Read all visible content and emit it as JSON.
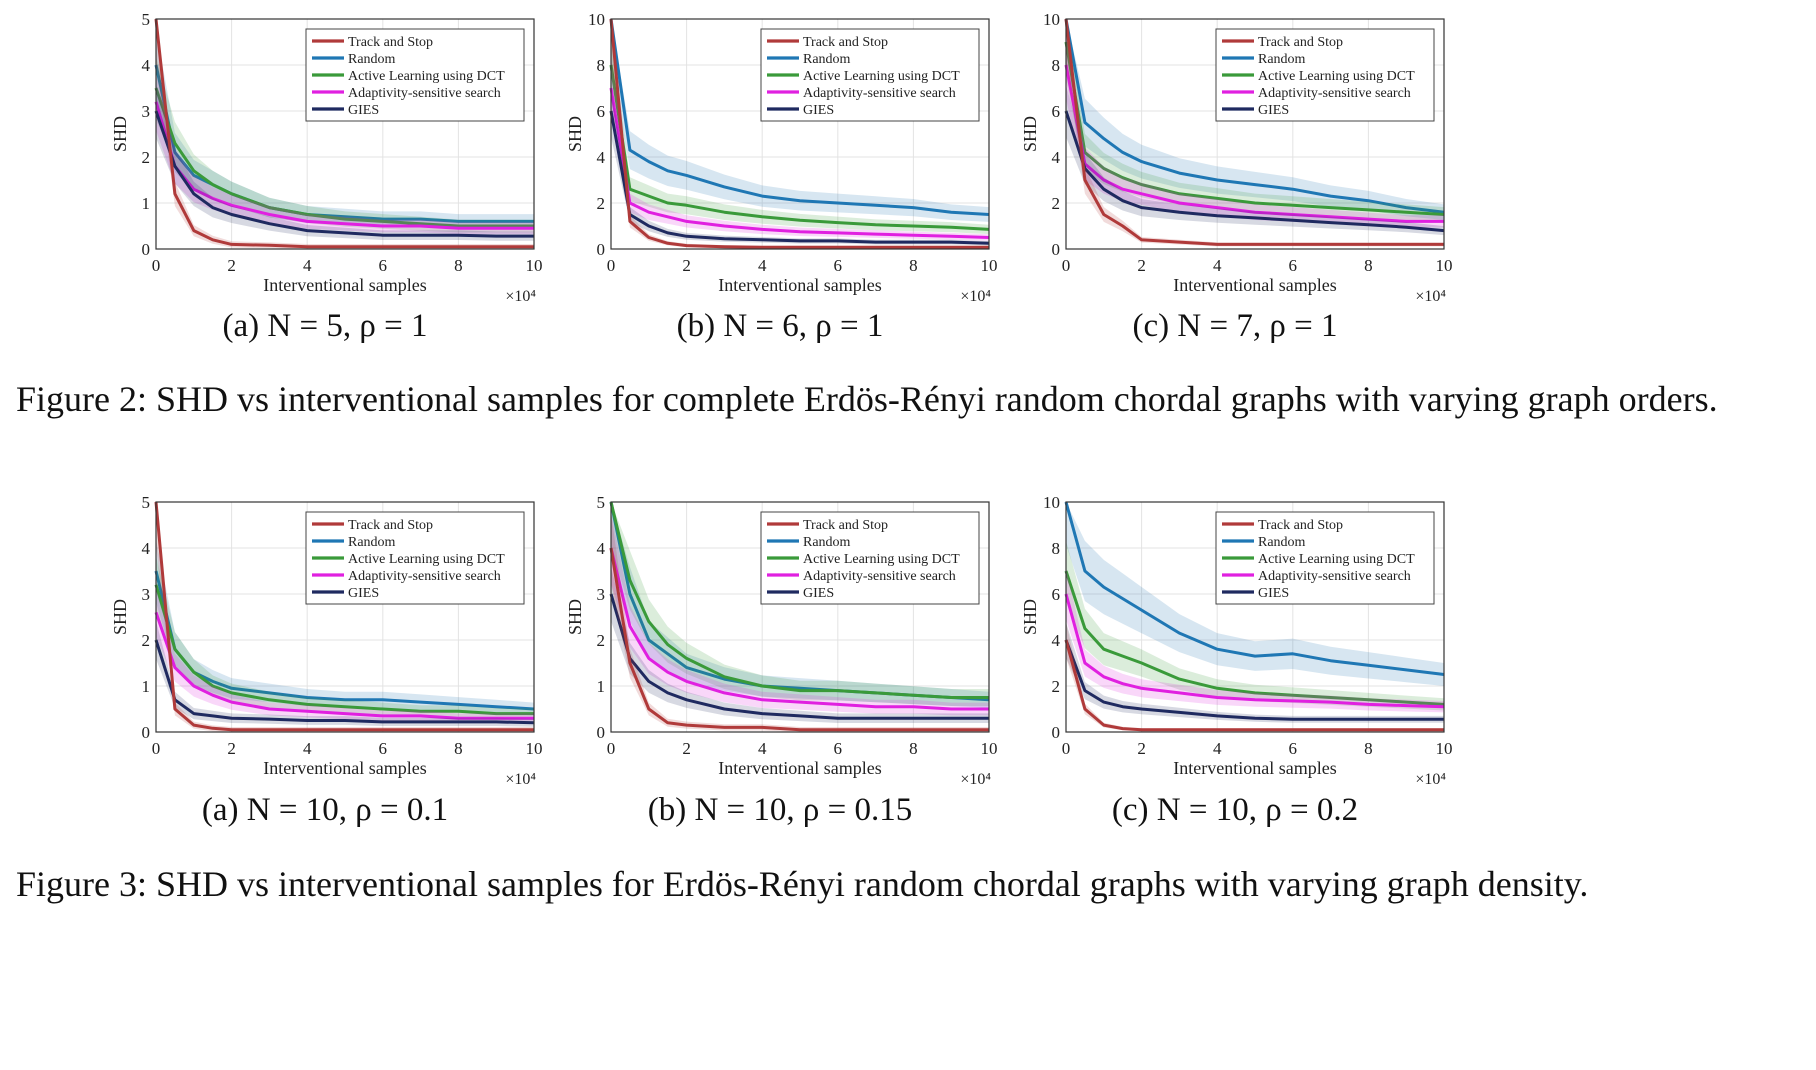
{
  "colors": {
    "track_and_stop": "#b03a3a",
    "random": "#1f77b4",
    "active_learning_dct": "#3a9a3a",
    "adaptivity_sensitive": "#e020e0",
    "gies": "#1f2a60"
  },
  "figure2": {
    "caption": "Figure 2: SHD vs interventional samples for complete Erdös-Rényi random chordal graphs with varying graph orders.",
    "subcaptions": [
      "(a) N = 5, ρ = 1",
      "(b) N = 6, ρ = 1",
      "(c) N = 7, ρ = 1"
    ]
  },
  "figure3": {
    "caption": "Figure 3: SHD vs interventional samples for Erdös-Rényi random chordal graphs with varying graph density.",
    "subcaptions": [
      "(a) N = 10, ρ = 0.1",
      "(b) N = 10, ρ = 0.15",
      "(c) N = 10, ρ = 0.2"
    ]
  },
  "chart_data": [
    {
      "type": "line",
      "ylabel": "SHD",
      "xlabel": "Interventional samples",
      "x_multiplier": "×10⁴",
      "xlim": [
        0,
        10
      ],
      "ylim": [
        0,
        5
      ],
      "xticks": [
        "0",
        "2",
        "4",
        "6",
        "8",
        "10"
      ],
      "yticks": [
        "0",
        "1",
        "2",
        "3",
        "4",
        "5"
      ],
      "grid": true,
      "legend_position": "top-right",
      "x": [
        0,
        0.5,
        1,
        1.5,
        2,
        3,
        4,
        5,
        6,
        7,
        8,
        9,
        10
      ],
      "series": [
        {
          "name": "Track and Stop",
          "values": [
            5,
            1.2,
            0.4,
            0.2,
            0.1,
            0.08,
            0.05,
            0.05,
            0.05,
            0.05,
            0.05,
            0.05,
            0.05
          ]
        },
        {
          "name": "Random",
          "values": [
            4,
            2.1,
            1.6,
            1.4,
            1.2,
            0.9,
            0.75,
            0.7,
            0.65,
            0.65,
            0.6,
            0.6,
            0.6
          ]
        },
        {
          "name": "Active Learning using DCT",
          "values": [
            3.5,
            2.3,
            1.7,
            1.4,
            1.2,
            0.9,
            0.75,
            0.65,
            0.6,
            0.55,
            0.5,
            0.5,
            0.5
          ]
        },
        {
          "name": "Adaptivity-sensitive search",
          "values": [
            3.2,
            1.8,
            1.3,
            1.1,
            0.95,
            0.75,
            0.6,
            0.55,
            0.5,
            0.5,
            0.45,
            0.45,
            0.45
          ]
        },
        {
          "name": "GIES",
          "values": [
            3,
            1.8,
            1.2,
            0.9,
            0.75,
            0.55,
            0.4,
            0.35,
            0.3,
            0.3,
            0.3,
            0.28,
            0.28
          ]
        }
      ]
    },
    {
      "type": "line",
      "ylabel": "SHD",
      "xlabel": "Interventional samples",
      "x_multiplier": "×10⁴",
      "xlim": [
        0,
        10
      ],
      "ylim": [
        0,
        10
      ],
      "xticks": [
        "0",
        "2",
        "4",
        "6",
        "8",
        "10"
      ],
      "yticks": [
        "0",
        "2",
        "4",
        "6",
        "8",
        "10"
      ],
      "grid": true,
      "legend_position": "top-right",
      "x": [
        0,
        0.5,
        1,
        1.5,
        2,
        3,
        4,
        5,
        6,
        7,
        8,
        9,
        10
      ],
      "series": [
        {
          "name": "Track and Stop",
          "values": [
            10,
            1.2,
            0.5,
            0.25,
            0.15,
            0.1,
            0.08,
            0.08,
            0.08,
            0.08,
            0.08,
            0.08,
            0.08
          ]
        },
        {
          "name": "Random",
          "values": [
            10,
            4.3,
            3.8,
            3.4,
            3.2,
            2.7,
            2.3,
            2.1,
            2.0,
            1.9,
            1.8,
            1.6,
            1.5
          ]
        },
        {
          "name": "Active Learning using DCT",
          "values": [
            8,
            2.6,
            2.3,
            2.0,
            1.9,
            1.6,
            1.4,
            1.25,
            1.15,
            1.05,
            1.0,
            0.95,
            0.85
          ]
        },
        {
          "name": "Adaptivity-sensitive search",
          "values": [
            7,
            2.0,
            1.6,
            1.4,
            1.2,
            1.0,
            0.85,
            0.75,
            0.7,
            0.65,
            0.6,
            0.55,
            0.5
          ]
        },
        {
          "name": "GIES",
          "values": [
            6,
            1.5,
            1.0,
            0.7,
            0.55,
            0.45,
            0.4,
            0.35,
            0.35,
            0.3,
            0.3,
            0.3,
            0.25
          ]
        }
      ]
    },
    {
      "type": "line",
      "ylabel": "SHD",
      "xlabel": "Interventional samples",
      "x_multiplier": "×10⁴",
      "xlim": [
        0,
        10
      ],
      "ylim": [
        0,
        10
      ],
      "xticks": [
        "0",
        "2",
        "4",
        "6",
        "8",
        "10"
      ],
      "yticks": [
        "0",
        "2",
        "4",
        "6",
        "8",
        "10"
      ],
      "grid": true,
      "legend_position": "top-right",
      "x": [
        0,
        0.5,
        1,
        1.5,
        2,
        3,
        4,
        5,
        6,
        7,
        8,
        9,
        10
      ],
      "series": [
        {
          "name": "Track and Stop",
          "values": [
            10,
            3.0,
            1.5,
            1.0,
            0.4,
            0.3,
            0.2,
            0.2,
            0.2,
            0.2,
            0.2,
            0.2,
            0.2
          ]
        },
        {
          "name": "Random",
          "values": [
            10,
            5.5,
            4.8,
            4.2,
            3.8,
            3.3,
            3.0,
            2.8,
            2.6,
            2.3,
            2.1,
            1.8,
            1.6
          ]
        },
        {
          "name": "Active Learning using DCT",
          "values": [
            9,
            4.2,
            3.5,
            3.1,
            2.8,
            2.4,
            2.2,
            2.0,
            1.9,
            1.8,
            1.7,
            1.6,
            1.5
          ]
        },
        {
          "name": "Adaptivity-sensitive search",
          "values": [
            8,
            3.7,
            3.0,
            2.6,
            2.4,
            2.0,
            1.8,
            1.6,
            1.5,
            1.4,
            1.3,
            1.2,
            1.2
          ]
        },
        {
          "name": "GIES",
          "values": [
            6,
            3.5,
            2.6,
            2.1,
            1.8,
            1.6,
            1.45,
            1.35,
            1.25,
            1.15,
            1.05,
            0.95,
            0.8
          ]
        }
      ]
    },
    {
      "type": "line",
      "ylabel": "SHD",
      "xlabel": "Interventional samples",
      "x_multiplier": "×10⁴",
      "xlim": [
        0,
        10
      ],
      "ylim": [
        0,
        5
      ],
      "xticks": [
        "0",
        "2",
        "4",
        "6",
        "8",
        "10"
      ],
      "yticks": [
        "0",
        "1",
        "2",
        "3",
        "4",
        "5"
      ],
      "grid": true,
      "legend_position": "top-right",
      "x": [
        0,
        0.5,
        1,
        1.5,
        2,
        3,
        4,
        5,
        6,
        7,
        8,
        9,
        10
      ],
      "series": [
        {
          "name": "Track and Stop",
          "values": [
            5,
            0.5,
            0.15,
            0.08,
            0.05,
            0.05,
            0.05,
            0.05,
            0.05,
            0.05,
            0.05,
            0.05,
            0.05
          ]
        },
        {
          "name": "Random",
          "values": [
            3.5,
            1.8,
            1.3,
            1.1,
            0.95,
            0.85,
            0.75,
            0.7,
            0.7,
            0.65,
            0.6,
            0.55,
            0.5
          ]
        },
        {
          "name": "Active Learning using DCT",
          "values": [
            3.2,
            1.8,
            1.3,
            1.0,
            0.85,
            0.7,
            0.6,
            0.55,
            0.5,
            0.45,
            0.45,
            0.4,
            0.4
          ]
        },
        {
          "name": "Adaptivity-sensitive search",
          "values": [
            2.6,
            1.4,
            1.0,
            0.8,
            0.65,
            0.5,
            0.45,
            0.4,
            0.35,
            0.35,
            0.3,
            0.3,
            0.3
          ]
        },
        {
          "name": "GIES",
          "values": [
            2,
            0.7,
            0.4,
            0.35,
            0.3,
            0.28,
            0.25,
            0.25,
            0.22,
            0.22,
            0.22,
            0.22,
            0.2
          ]
        }
      ]
    },
    {
      "type": "line",
      "ylabel": "SHD",
      "xlabel": "Interventional samples",
      "x_multiplier": "×10⁴",
      "xlim": [
        0,
        10
      ],
      "ylim": [
        0,
        5
      ],
      "xticks": [
        "0",
        "2",
        "4",
        "6",
        "8",
        "10"
      ],
      "yticks": [
        "0",
        "1",
        "2",
        "3",
        "4",
        "5"
      ],
      "grid": true,
      "legend_position": "top-right",
      "x": [
        0,
        0.5,
        1,
        1.5,
        2,
        3,
        4,
        5,
        6,
        7,
        8,
        9,
        10
      ],
      "series": [
        {
          "name": "Track and Stop",
          "values": [
            4,
            1.5,
            0.5,
            0.2,
            0.15,
            0.1,
            0.1,
            0.05,
            0.05,
            0.05,
            0.05,
            0.05,
            0.05
          ]
        },
        {
          "name": "Random",
          "values": [
            5,
            3.0,
            2.0,
            1.7,
            1.4,
            1.15,
            1.0,
            0.95,
            0.9,
            0.85,
            0.8,
            0.75,
            0.7
          ]
        },
        {
          "name": "Active Learning using DCT",
          "values": [
            5,
            3.3,
            2.4,
            1.9,
            1.6,
            1.2,
            1.0,
            0.9,
            0.9,
            0.85,
            0.8,
            0.75,
            0.75
          ]
        },
        {
          "name": "Adaptivity-sensitive search",
          "values": [
            4,
            2.3,
            1.6,
            1.3,
            1.1,
            0.85,
            0.7,
            0.65,
            0.6,
            0.55,
            0.55,
            0.5,
            0.5
          ]
        },
        {
          "name": "GIES",
          "values": [
            3,
            1.6,
            1.1,
            0.85,
            0.7,
            0.5,
            0.4,
            0.35,
            0.3,
            0.3,
            0.3,
            0.3,
            0.3
          ]
        }
      ]
    },
    {
      "type": "line",
      "ylabel": "SHD",
      "xlabel": "Interventional samples",
      "x_multiplier": "×10⁴",
      "xlim": [
        0,
        10
      ],
      "ylim": [
        0,
        10
      ],
      "xticks": [
        "0",
        "2",
        "4",
        "6",
        "8",
        "10"
      ],
      "yticks": [
        "0",
        "2",
        "4",
        "6",
        "8",
        "10"
      ],
      "grid": true,
      "legend_position": "top-right",
      "x": [
        0,
        0.5,
        1,
        1.5,
        2,
        3,
        4,
        5,
        6,
        7,
        8,
        9,
        10
      ],
      "series": [
        {
          "name": "Track and Stop",
          "values": [
            4,
            1.0,
            0.3,
            0.15,
            0.1,
            0.1,
            0.1,
            0.1,
            0.1,
            0.1,
            0.1,
            0.1,
            0.1
          ]
        },
        {
          "name": "Random",
          "values": [
            10,
            7.0,
            6.3,
            5.8,
            5.3,
            4.3,
            3.6,
            3.3,
            3.4,
            3.1,
            2.9,
            2.7,
            2.5
          ]
        },
        {
          "name": "Active Learning using DCT",
          "values": [
            7,
            4.5,
            3.6,
            3.3,
            3.0,
            2.3,
            1.9,
            1.7,
            1.6,
            1.5,
            1.4,
            1.3,
            1.2
          ]
        },
        {
          "name": "Adaptivity-sensitive search",
          "values": [
            6,
            3.0,
            2.4,
            2.1,
            1.9,
            1.7,
            1.5,
            1.4,
            1.35,
            1.3,
            1.2,
            1.15,
            1.1
          ]
        },
        {
          "name": "GIES",
          "values": [
            4,
            1.8,
            1.3,
            1.1,
            1.0,
            0.85,
            0.7,
            0.6,
            0.55,
            0.55,
            0.55,
            0.55,
            0.55
          ]
        }
      ]
    }
  ]
}
